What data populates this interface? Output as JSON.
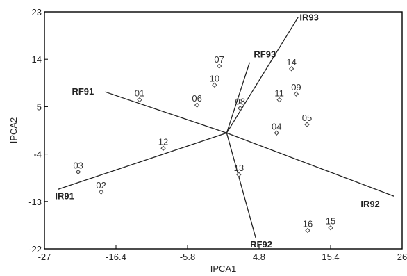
{
  "chart_data": {
    "type": "scatter",
    "title": "",
    "xlabel": "IPCA1",
    "ylabel": "IPCA2",
    "xlim": [
      -27,
      26
    ],
    "ylim": [
      -22,
      23
    ],
    "x_ticks": [
      "-27",
      "-16.4",
      "-5.8",
      "4.8",
      "15.4",
      "26"
    ],
    "y_ticks": [
      "23",
      "14",
      "5",
      "-4",
      "-13",
      "-22"
    ],
    "grid": false,
    "points": [
      {
        "label": "01",
        "x": -12.9,
        "y": 6.3
      },
      {
        "label": "02",
        "x": -18.6,
        "y": -11.2
      },
      {
        "label": "03",
        "x": -22.0,
        "y": -7.4
      },
      {
        "label": "04",
        "x": 7.4,
        "y": 0.0
      },
      {
        "label": "05",
        "x": 11.9,
        "y": 1.6
      },
      {
        "label": "06",
        "x": -4.4,
        "y": 5.3
      },
      {
        "label": "07",
        "x": -1.1,
        "y": 12.7
      },
      {
        "label": "08",
        "x": 2.0,
        "y": 4.7
      },
      {
        "label": "09",
        "x": 10.3,
        "y": 7.4
      },
      {
        "label": "10",
        "x": -1.8,
        "y": 9.1
      },
      {
        "label": "11",
        "x": 7.8,
        "y": 6.3
      },
      {
        "label": "12",
        "x": -9.4,
        "y": -2.9
      },
      {
        "label": "13",
        "x": 1.8,
        "y": -7.9
      },
      {
        "label": "14",
        "x": 9.6,
        "y": 12.2
      },
      {
        "label": "15",
        "x": 15.4,
        "y": -18.0
      },
      {
        "label": "16",
        "x": 12.0,
        "y": -18.5
      }
    ],
    "vectors": [
      {
        "label": "IR91",
        "x": -25.0,
        "y": -10.7
      },
      {
        "label": "RF91",
        "x": -18.0,
        "y": 7.8
      },
      {
        "label": "IR92",
        "x": 24.8,
        "y": -12.0
      },
      {
        "label": "RF92",
        "x": 4.3,
        "y": -19.9
      },
      {
        "label": "IR93",
        "x": 10.6,
        "y": 22.0
      },
      {
        "label": "RF93",
        "x": 3.4,
        "y": 13.4
      }
    ]
  }
}
